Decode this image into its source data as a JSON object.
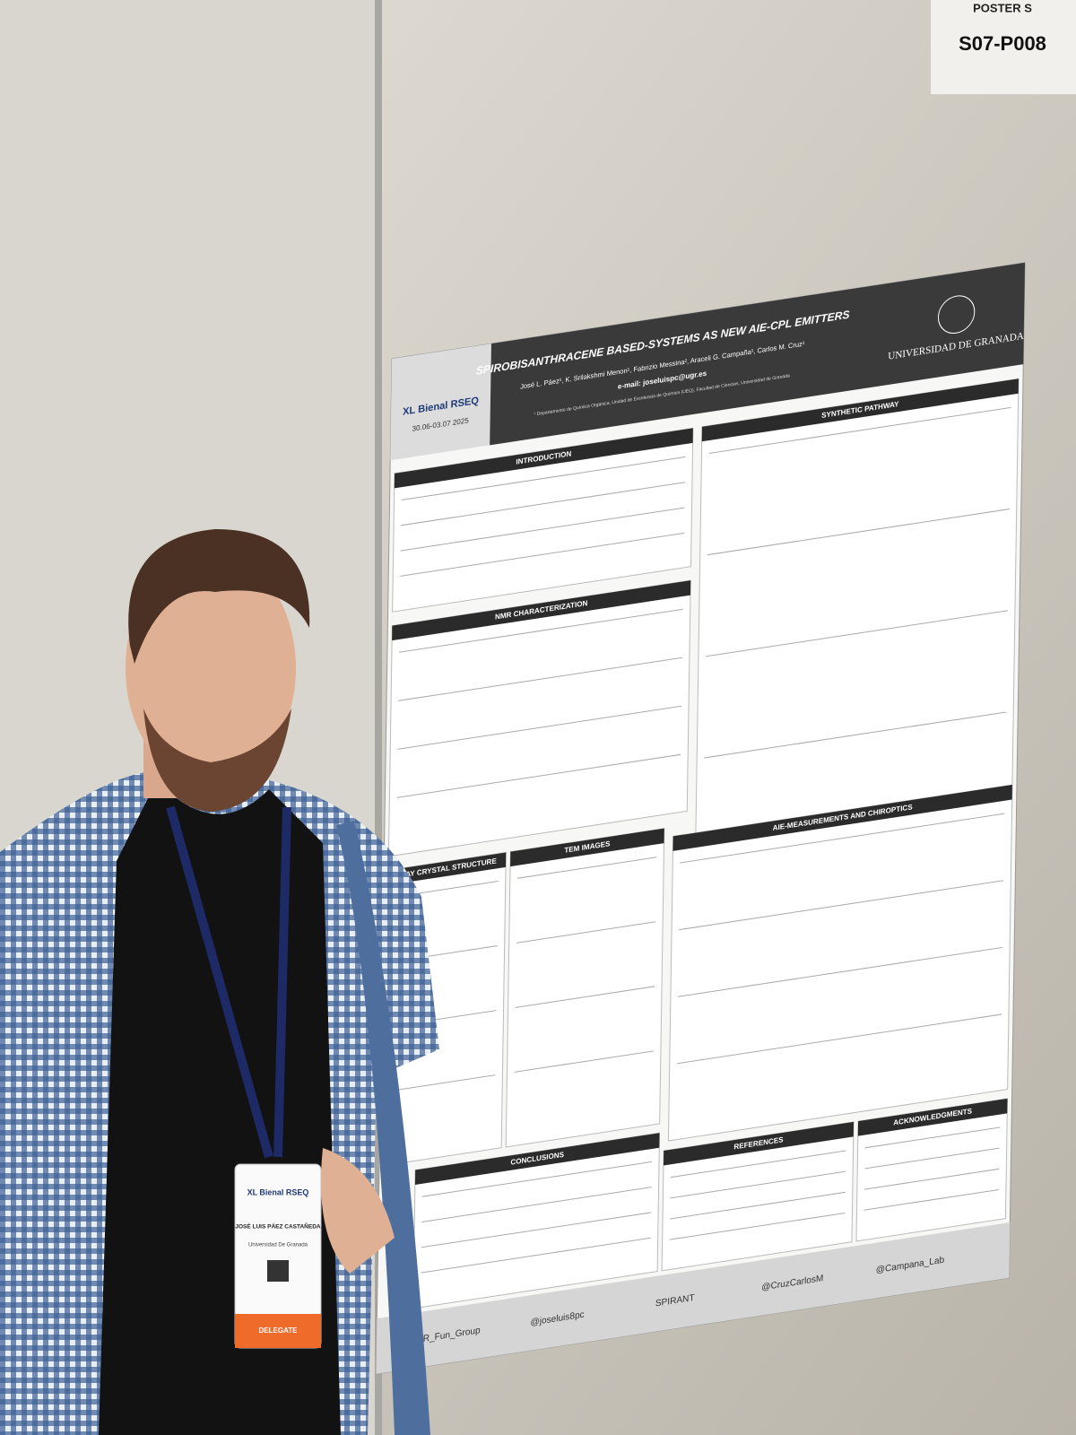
{
  "poster_number": {
    "header": "POSTER S",
    "code": "S07-P008"
  },
  "poster": {
    "title": "SPIROBISANTHRACENE BASED-SYSTEMS AS NEW AIE-CPL EMITTERS",
    "authors": "José L. Páez¹, K. Srilakshmi Menon¹, Fabrizio Messina², Araceli G. Campaña¹, Carlos M. Cruz¹",
    "email": "e-mail: joseluispc@ugr.es",
    "affiliation": "¹ Departamento de Química Orgánica, Unidad de Excelencia de Química (UEQ), Facultad de Ciencias, Universidad de Granada",
    "university": "UNIVERSIDAD DE GRANADA",
    "conference": "XL Bienal RSEQ",
    "dates": "30.06-03.07 2025",
    "sections": [
      "INTRODUCTION",
      "NMR CHARACTERIZATION",
      "SYNTHETIC PATHWAY",
      "X-RAY CRYSTAL STRUCTURE",
      "TEM IMAGES",
      "AIE-MEASUREMENTS AND CHIROPTICS",
      "CONCLUSIONS",
      "REFERENCES",
      "ACKNOWLEDGMENTS"
    ],
    "handles": [
      "@MOR_Fun_Group",
      "@joseluis8pc",
      "SPIRANT",
      "@CruzCarlosM",
      "@Campana_Lab"
    ]
  },
  "badge": {
    "event": "XL Bienal RSEQ",
    "name": "JOSÉ LUIS PÁEZ CASTAÑEDA",
    "affiliation": "Universidad De Granada",
    "role": "DELEGATE"
  }
}
